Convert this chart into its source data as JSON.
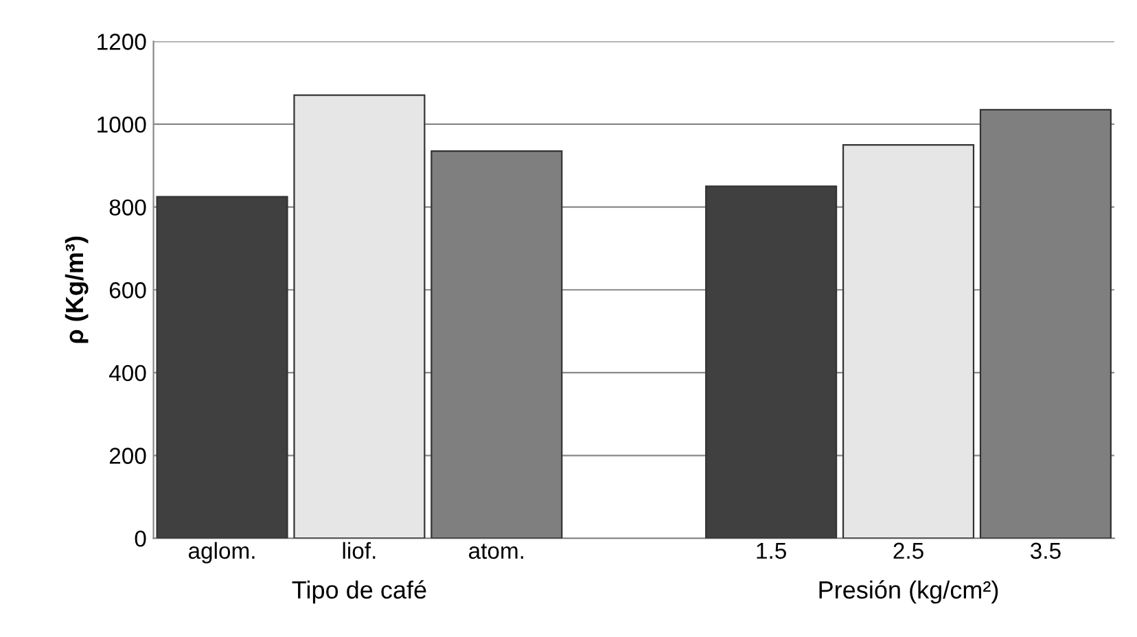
{
  "chart_data": {
    "type": "bar",
    "ylabel": "ρ (Kg/m³)",
    "categories": [
      "aglom.",
      "liof.",
      "atom.",
      null,
      "1.5",
      "2.5",
      "3.5"
    ],
    "values": [
      825,
      1070,
      935,
      null,
      850,
      950,
      1035
    ],
    "colors": [
      "#404040",
      "#e6e6e6",
      "#7f7f7f",
      "#ffffff",
      "#404040",
      "#e6e6e6",
      "#7f7f7f"
    ],
    "ylim": [
      0,
      1200
    ],
    "yticks": [
      0,
      200,
      400,
      600,
      800,
      1000,
      1200
    ],
    "grid": "y",
    "annotations": [
      "Tipo de café",
      "Presión (kg/cm²)"
    ]
  }
}
